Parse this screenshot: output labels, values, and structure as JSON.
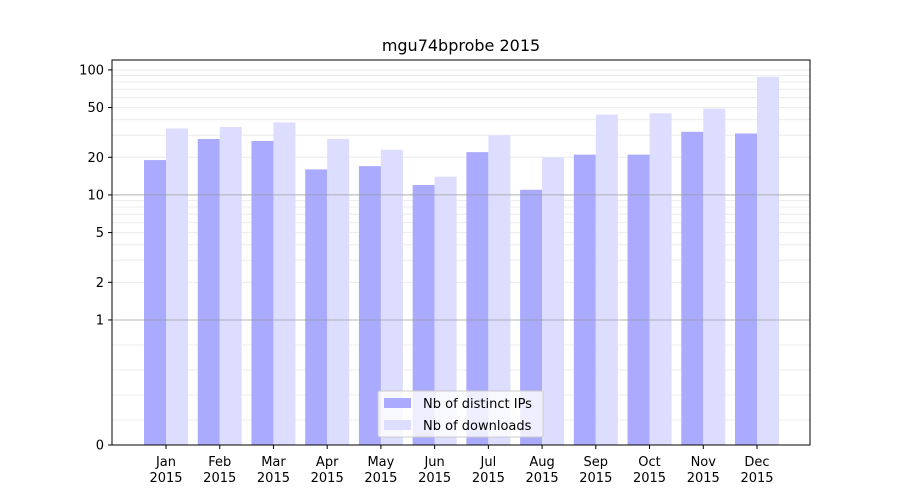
{
  "chart_data": {
    "type": "bar",
    "title": "mgu74bprobe 2015",
    "xlabel": "",
    "ylabel": "",
    "y_scale": "symlog",
    "ylim": [
      0,
      120
    ],
    "y_ticks": [
      0,
      1,
      2,
      5,
      10,
      20,
      50,
      100
    ],
    "y_tick_labels": [
      "0",
      "1",
      "2",
      "5",
      "10",
      "20",
      "50",
      "100"
    ],
    "categories": [
      [
        "Jan",
        "2015"
      ],
      [
        "Feb",
        "2015"
      ],
      [
        "Mar",
        "2015"
      ],
      [
        "Apr",
        "2015"
      ],
      [
        "May",
        "2015"
      ],
      [
        "Jun",
        "2015"
      ],
      [
        "Jul",
        "2015"
      ],
      [
        "Aug",
        "2015"
      ],
      [
        "Sep",
        "2015"
      ],
      [
        "Oct",
        "2015"
      ],
      [
        "Nov",
        "2015"
      ],
      [
        "Dec",
        "2015"
      ]
    ],
    "series": [
      {
        "name": "Nb of distinct IPs",
        "color": "#aaaaff",
        "values": [
          19,
          28,
          27,
          16,
          17,
          12,
          22,
          11,
          21,
          21,
          32,
          31
        ]
      },
      {
        "name": "Nb of downloads",
        "color": "#ddddff",
        "values": [
          34,
          35,
          38,
          28,
          23,
          14,
          30,
          20,
          44,
          45,
          49,
          88
        ]
      }
    ],
    "reference_lines": [
      1,
      10
    ],
    "grid": "horizontal-minor",
    "legend": "bottom-center"
  }
}
